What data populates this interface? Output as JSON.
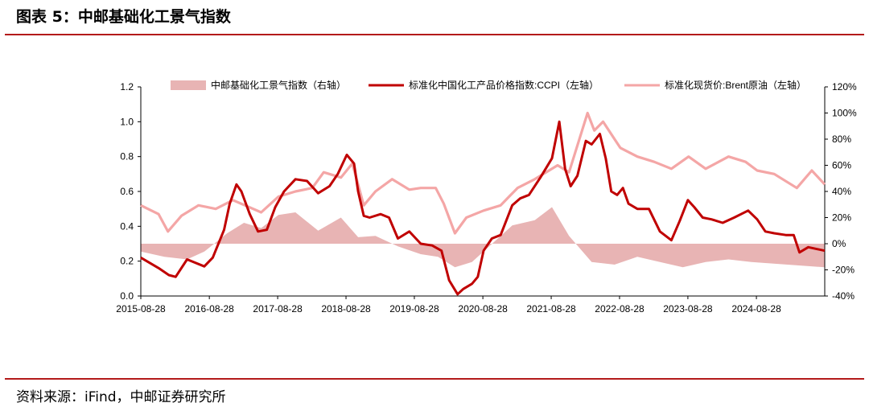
{
  "header": {
    "title": "图表 5：中邮基础化工景气指数"
  },
  "footer": {
    "source": "资料来源：iFind，中邮证券研究所"
  },
  "colors": {
    "accent": "#b31a1a",
    "prosperity": "#e8b4b4",
    "ccpi": "#c00000",
    "brent": "#f4a6a6"
  },
  "chart_data": {
    "type": "line",
    "title": "",
    "x_ticks": [
      "2015-08-28",
      "2016-08-28",
      "2017-08-28",
      "2018-08-28",
      "2019-08-28",
      "2020-08-28",
      "2021-08-28",
      "2022-08-28",
      "2023-08-28",
      "2024-08-28"
    ],
    "x_range": [
      "2015-08-28",
      "2025-08-28"
    ],
    "y_left": {
      "range": [
        0.0,
        1.2
      ],
      "ticks": [
        "0.0",
        "0.2",
        "0.4",
        "0.6",
        "0.8",
        "1.0",
        "1.2"
      ]
    },
    "y_right": {
      "range": [
        -40,
        120
      ],
      "unit": "%",
      "ticks": [
        "-40%",
        "-20%",
        "0%",
        "20%",
        "40%",
        "60%",
        "80%",
        "100%",
        "120%"
      ]
    },
    "legend_position": "top",
    "series": [
      {
        "name": "中邮基础化工景气指数（右轴）",
        "kind": "area",
        "axis": "right",
        "points": [
          [
            "2015-08-28",
            -6
          ],
          [
            "2016-01-01",
            -10
          ],
          [
            "2016-05-01",
            -12
          ],
          [
            "2016-08-01",
            -6
          ],
          [
            "2016-12-01",
            8
          ],
          [
            "2017-03-01",
            16
          ],
          [
            "2017-06-01",
            12
          ],
          [
            "2017-09-01",
            22
          ],
          [
            "2017-12-01",
            24
          ],
          [
            "2018-04-01",
            10
          ],
          [
            "2018-08-01",
            20
          ],
          [
            "2018-11-01",
            5
          ],
          [
            "2019-02-01",
            6
          ],
          [
            "2019-06-01",
            -2
          ],
          [
            "2019-10-01",
            -8
          ],
          [
            "2020-01-01",
            -10
          ],
          [
            "2020-04-01",
            -18
          ],
          [
            "2020-07-01",
            -14
          ],
          [
            "2020-10-01",
            -2
          ],
          [
            "2021-02-01",
            14
          ],
          [
            "2021-06-01",
            18
          ],
          [
            "2021-09-01",
            28
          ],
          [
            "2021-12-01",
            6
          ],
          [
            "2022-04-01",
            -14
          ],
          [
            "2022-08-01",
            -16
          ],
          [
            "2022-12-01",
            -10
          ],
          [
            "2023-04-01",
            -14
          ],
          [
            "2023-08-01",
            -18
          ],
          [
            "2023-12-01",
            -14
          ],
          [
            "2024-04-01",
            -12
          ],
          [
            "2024-08-01",
            -14
          ],
          [
            "2025-08-28",
            -18
          ]
        ]
      },
      {
        "name": "标准化中国化工产品价格指数:CCPI（左轴）",
        "kind": "line",
        "axis": "left",
        "points": [
          [
            "2015-08-28",
            0.22
          ],
          [
            "2015-12-01",
            0.16
          ],
          [
            "2016-01-25",
            0.12
          ],
          [
            "2016-03-01",
            0.11
          ],
          [
            "2016-05-01",
            0.21
          ],
          [
            "2016-08-01",
            0.17
          ],
          [
            "2016-09-15",
            0.22
          ],
          [
            "2016-11-15",
            0.38
          ],
          [
            "2016-12-15",
            0.53
          ],
          [
            "2017-01-20",
            0.64
          ],
          [
            "2017-02-15",
            0.6
          ],
          [
            "2017-04-01",
            0.47
          ],
          [
            "2017-05-15",
            0.37
          ],
          [
            "2017-07-01",
            0.38
          ],
          [
            "2017-08-15",
            0.51
          ],
          [
            "2017-10-01",
            0.6
          ],
          [
            "2017-12-01",
            0.67
          ],
          [
            "2018-02-01",
            0.66
          ],
          [
            "2018-04-01",
            0.59
          ],
          [
            "2018-06-01",
            0.63
          ],
          [
            "2018-07-15",
            0.7
          ],
          [
            "2018-09-01",
            0.81
          ],
          [
            "2018-10-10",
            0.76
          ],
          [
            "2018-11-01",
            0.6
          ],
          [
            "2018-12-01",
            0.46
          ],
          [
            "2019-01-01",
            0.45
          ],
          [
            "2019-03-01",
            0.47
          ],
          [
            "2019-04-15",
            0.45
          ],
          [
            "2019-06-01",
            0.33
          ],
          [
            "2019-08-01",
            0.37
          ],
          [
            "2019-10-01",
            0.3
          ],
          [
            "2019-12-01",
            0.29
          ],
          [
            "2020-01-20",
            0.26
          ],
          [
            "2020-03-01",
            0.09
          ],
          [
            "2020-04-15",
            0.01
          ],
          [
            "2020-05-15",
            0.04
          ],
          [
            "2020-07-01",
            0.07
          ],
          [
            "2020-08-01",
            0.11
          ],
          [
            "2020-09-01",
            0.26
          ],
          [
            "2020-10-15",
            0.33
          ],
          [
            "2020-12-01",
            0.35
          ],
          [
            "2021-02-01",
            0.52
          ],
          [
            "2021-03-15",
            0.56
          ],
          [
            "2021-05-01",
            0.58
          ],
          [
            "2021-07-01",
            0.68
          ],
          [
            "2021-09-01",
            0.79
          ],
          [
            "2021-10-10",
            1.0
          ],
          [
            "2021-11-10",
            0.73
          ],
          [
            "2021-12-10",
            0.63
          ],
          [
            "2022-01-15",
            0.69
          ],
          [
            "2022-03-01",
            0.89
          ],
          [
            "2022-04-01",
            0.87
          ],
          [
            "2022-05-15",
            0.93
          ],
          [
            "2022-06-15",
            0.79
          ],
          [
            "2022-07-15",
            0.6
          ],
          [
            "2022-08-15",
            0.58
          ],
          [
            "2022-09-15",
            0.62
          ],
          [
            "2022-10-15",
            0.53
          ],
          [
            "2022-12-01",
            0.5
          ],
          [
            "2023-02-01",
            0.5
          ],
          [
            "2023-04-01",
            0.37
          ],
          [
            "2023-06-01",
            0.32
          ],
          [
            "2023-07-15",
            0.43
          ],
          [
            "2023-08-28",
            0.55
          ],
          [
            "2023-10-01",
            0.51
          ],
          [
            "2023-11-15",
            0.45
          ],
          [
            "2024-01-01",
            0.44
          ],
          [
            "2024-03-01",
            0.42
          ],
          [
            "2024-05-01",
            0.45
          ],
          [
            "2024-07-15",
            0.49
          ],
          [
            "2024-09-01",
            0.44
          ],
          [
            "2024-10-15",
            0.37
          ],
          [
            "2024-12-01",
            0.36
          ],
          [
            "2025-02-01",
            0.35
          ],
          [
            "2025-03-15",
            0.35
          ],
          [
            "2025-04-15",
            0.25
          ],
          [
            "2025-06-01",
            0.28
          ],
          [
            "2025-08-28",
            0.26
          ]
        ]
      },
      {
        "name": "标准化现货价:Brent原油（左轴）",
        "kind": "line",
        "axis": "left",
        "points": [
          [
            "2015-08-28",
            0.52
          ],
          [
            "2015-12-01",
            0.47
          ],
          [
            "2016-01-20",
            0.37
          ],
          [
            "2016-04-01",
            0.46
          ],
          [
            "2016-07-01",
            0.52
          ],
          [
            "2016-10-01",
            0.5
          ],
          [
            "2017-01-01",
            0.55
          ],
          [
            "2017-06-01",
            0.48
          ],
          [
            "2017-09-01",
            0.57
          ],
          [
            "2017-12-01",
            0.6
          ],
          [
            "2018-03-01",
            0.62
          ],
          [
            "2018-05-01",
            0.71
          ],
          [
            "2018-08-01",
            0.68
          ],
          [
            "2018-10-01",
            0.76
          ],
          [
            "2018-12-01",
            0.52
          ],
          [
            "2019-02-01",
            0.6
          ],
          [
            "2019-05-01",
            0.67
          ],
          [
            "2019-08-01",
            0.61
          ],
          [
            "2019-10-01",
            0.62
          ],
          [
            "2019-12-20",
            0.62
          ],
          [
            "2020-02-01",
            0.53
          ],
          [
            "2020-04-01",
            0.36
          ],
          [
            "2020-06-01",
            0.45
          ],
          [
            "2020-09-01",
            0.49
          ],
          [
            "2020-12-01",
            0.52
          ],
          [
            "2021-03-01",
            0.62
          ],
          [
            "2021-06-01",
            0.67
          ],
          [
            "2021-10-01",
            0.75
          ],
          [
            "2021-12-01",
            0.71
          ],
          [
            "2022-03-10",
            1.05
          ],
          [
            "2022-04-15",
            0.95
          ],
          [
            "2022-06-01",
            1.0
          ],
          [
            "2022-09-01",
            0.85
          ],
          [
            "2022-12-01",
            0.8
          ],
          [
            "2023-03-01",
            0.77
          ],
          [
            "2023-06-01",
            0.73
          ],
          [
            "2023-09-01",
            0.8
          ],
          [
            "2023-12-01",
            0.73
          ],
          [
            "2024-04-01",
            0.8
          ],
          [
            "2024-07-01",
            0.77
          ],
          [
            "2024-09-01",
            0.72
          ],
          [
            "2024-12-01",
            0.7
          ],
          [
            "2025-04-01",
            0.62
          ],
          [
            "2025-06-20",
            0.72
          ],
          [
            "2025-08-28",
            0.64
          ]
        ]
      }
    ]
  }
}
